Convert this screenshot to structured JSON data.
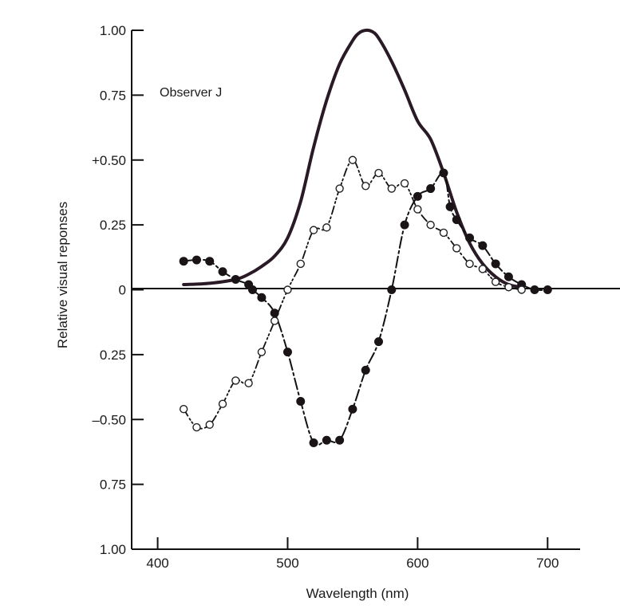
{
  "chart_data": {
    "type": "line",
    "title": "",
    "annotation": "Observer J",
    "xlabel": "Wavelength (nm)",
    "ylabel": "Relative visual reponses",
    "xlim": [
      380,
      725
    ],
    "ylim": [
      -1.0,
      1.0
    ],
    "xticks": [
      400,
      500,
      600,
      700
    ],
    "xtick_labels": [
      "400",
      "500",
      "600",
      "700"
    ],
    "yticks": [
      1.0,
      0.75,
      0.5,
      0.25,
      0,
      -0.25,
      -0.5,
      -0.75,
      -1.0
    ],
    "ytick_labels": [
      "1.00",
      "0.75",
      "+0.50",
      "0.25",
      "0",
      "0.25",
      "–0.50",
      "0.75",
      "1.00"
    ],
    "grid": false,
    "legend": "none",
    "colors": {
      "luminance": "#2a1a26",
      "series": "#111111",
      "axis": "#111111",
      "background": "#ffffff"
    },
    "series": [
      {
        "style": "solid-thick",
        "x": [
          420,
          440,
          460,
          470,
          480,
          490,
          500,
          510,
          520,
          530,
          540,
          550,
          555,
          560,
          565,
          570,
          580,
          590,
          600,
          610,
          620,
          630,
          640,
          650,
          660,
          670,
          680
        ],
        "y": [
          0.02,
          0.025,
          0.04,
          0.06,
          0.09,
          0.13,
          0.2,
          0.34,
          0.55,
          0.73,
          0.87,
          0.96,
          0.99,
          1.0,
          0.995,
          0.97,
          0.88,
          0.77,
          0.65,
          0.58,
          0.45,
          0.3,
          0.18,
          0.1,
          0.05,
          0.02,
          0.01
        ]
      },
      {
        "style": "dash-dot",
        "marker": "filled",
        "x": [
          420,
          430,
          440,
          450,
          460,
          470,
          473,
          480,
          490,
          500,
          510,
          520,
          530,
          540,
          550,
          560,
          570,
          580,
          590,
          600,
          610,
          620,
          625,
          630,
          640,
          650,
          660,
          670,
          680,
          690,
          700
        ],
        "y": [
          0.11,
          0.115,
          0.11,
          0.07,
          0.04,
          0.02,
          0.0,
          -0.03,
          -0.09,
          -0.24,
          -0.43,
          -0.59,
          -0.58,
          -0.58,
          -0.46,
          -0.31,
          -0.2,
          0.0,
          0.25,
          0.36,
          0.39,
          0.45,
          0.32,
          0.27,
          0.2,
          0.17,
          0.1,
          0.05,
          0.02,
          0.0,
          0.0
        ]
      },
      {
        "style": "dash-dot-dot",
        "marker": "open",
        "x": [
          420,
          430,
          440,
          450,
          460,
          470,
          480,
          490,
          500,
          510,
          520,
          530,
          540,
          550,
          560,
          570,
          580,
          590,
          600,
          610,
          620,
          630,
          640,
          650,
          660,
          670,
          680
        ],
        "y": [
          -0.46,
          -0.53,
          -0.52,
          -0.44,
          -0.35,
          -0.36,
          -0.24,
          -0.12,
          0.0,
          0.1,
          0.23,
          0.24,
          0.39,
          0.5,
          0.4,
          0.45,
          0.39,
          0.41,
          0.31,
          0.25,
          0.22,
          0.16,
          0.1,
          0.08,
          0.03,
          0.01,
          0.0
        ]
      }
    ]
  }
}
